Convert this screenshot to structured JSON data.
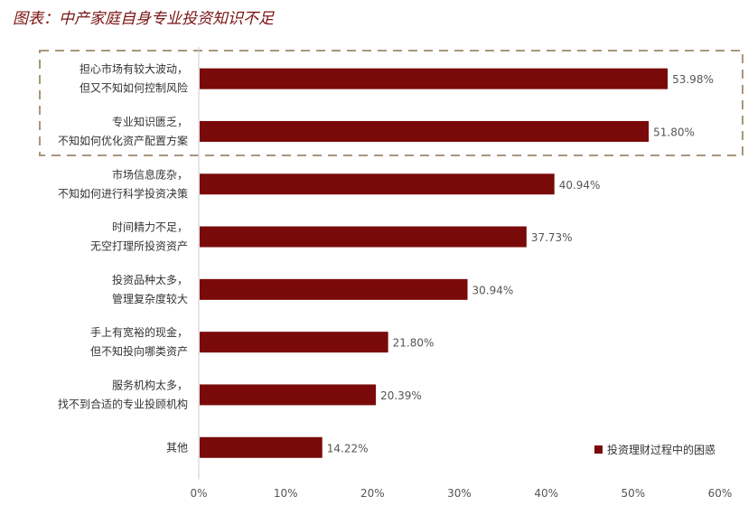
{
  "title": "图表：中产家庭自身专业投资知识不足",
  "chart_data": {
    "type": "bar",
    "orientation": "horizontal",
    "title": "",
    "xlabel": "",
    "ylabel": "",
    "xlim": [
      0,
      60
    ],
    "x_ticks": [
      "0%",
      "10%",
      "20%",
      "30%",
      "40%",
      "50%",
      "60%"
    ],
    "categories": [
      [
        "担心市场有较大波动，",
        "但又不知如何控制风险"
      ],
      [
        "专业知识匮乏，",
        "不知如何优化资产配置方案"
      ],
      [
        "市场信息庞杂，",
        "不知如何进行科学投资决策"
      ],
      [
        "时间精力不足，",
        "无空打理所投资资产"
      ],
      [
        "投资品种太多，",
        "管理复杂度较大"
      ],
      [
        "手上有宽裕的现金，",
        "但不知投向哪类资产"
      ],
      [
        "服务机构太多，",
        "找不到合适的专业投顾机构"
      ],
      [
        "其他"
      ]
    ],
    "series": [
      {
        "name": "投资理财过程中的困惑",
        "values": [
          53.98,
          51.8,
          40.94,
          37.73,
          30.94,
          21.8,
          20.39,
          14.22
        ],
        "labels": [
          "53.98%",
          "51.80%",
          "40.94%",
          "37.73%",
          "30.94%",
          "21.80%",
          "20.39%",
          "14.22%"
        ]
      }
    ],
    "highlight": "dashed box around the first two categories",
    "legend_position": "bottom-right",
    "colors": {
      "bar": "#7a0a0a",
      "highlight_border": "#a8977c",
      "axis": "#cccccc"
    },
    "grid": false
  }
}
